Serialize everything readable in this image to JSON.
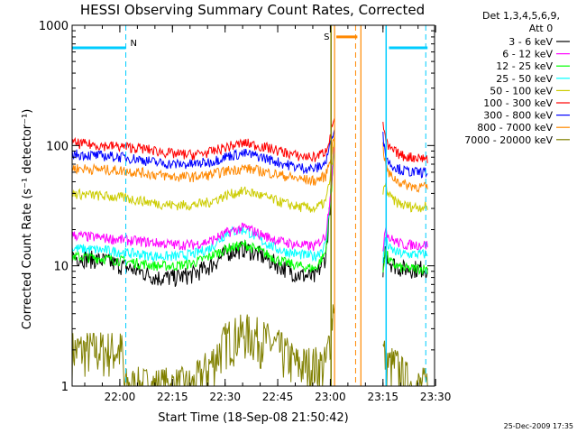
{
  "chart_data": {
    "type": "line",
    "title": "HESSI Observing Summary Count Rates, Corrected",
    "xlabel": "Start Time (18-Sep-08 21:50:42)",
    "ylabel": "Corrected Count Rate (s⁻¹ detector⁻¹)",
    "y_scale": "log",
    "ylim": [
      1,
      1000
    ],
    "xlim_minutes": [
      -4.3,
      99
    ],
    "x_ticks": [
      "22:00",
      "22:15",
      "22:30",
      "22:45",
      "23:00",
      "23:15",
      "23:30"
    ],
    "x_tick_minutes": [
      9.3,
      24.3,
      39.3,
      54.3,
      69.3,
      84.3,
      99.3
    ],
    "y_ticks": [
      "1",
      "10",
      "100",
      "1000"
    ],
    "y_tick_values": [
      1,
      10,
      100,
      1000
    ],
    "legend": {
      "header": [
        "Det 1,3,4,5,6,9,",
        "Att 0"
      ],
      "placement": "right"
    },
    "series": [
      {
        "name": "3 - 6 keV",
        "color": "#000000",
        "x": [
          -4.3,
          5,
          10,
          15,
          20,
          25,
          30,
          35,
          40,
          45,
          50,
          55,
          60,
          65,
          68,
          69.5,
          70.5
        ],
        "values": [
          12,
          11,
          10,
          9,
          8,
          8,
          8.5,
          10,
          13,
          14,
          12,
          10,
          8.5,
          8,
          12,
          40,
          100
        ]
      },
      {
        "name": "6 - 12 keV",
        "color": "#ff00ff",
        "x": [
          -4.3,
          5,
          10,
          15,
          20,
          25,
          30,
          35,
          40,
          45,
          50,
          55,
          60,
          65,
          68,
          69.5,
          70.5
        ],
        "values": [
          18,
          17,
          16.5,
          16,
          15.5,
          15,
          15,
          16,
          19,
          21,
          18,
          16,
          15,
          14.5,
          18,
          45,
          110
        ]
      },
      {
        "name": "12 - 25 keV",
        "color": "#00ff00",
        "x": [
          -4.3,
          5,
          10,
          15,
          20,
          25,
          30,
          35,
          40,
          45,
          50,
          55,
          60,
          65,
          68,
          69.5,
          70.5
        ],
        "values": [
          12,
          11.5,
          11,
          10.5,
          10,
          10,
          10.5,
          12,
          14,
          15,
          13,
          11,
          10,
          9.5,
          13,
          40,
          105
        ]
      },
      {
        "name": "25 - 50 keV",
        "color": "#00ffff",
        "x": [
          -4.3,
          5,
          10,
          15,
          20,
          25,
          30,
          35,
          40,
          45,
          50,
          55,
          60,
          65,
          68,
          69.5,
          70.5
        ],
        "values": [
          14,
          13.5,
          13,
          12.5,
          12,
          12,
          12.5,
          14,
          19,
          20,
          16,
          13.5,
          12.5,
          12,
          15,
          45,
          110
        ]
      },
      {
        "name": "50 - 100 keV",
        "color": "#cccc00",
        "x": [
          -4.3,
          5,
          10,
          15,
          20,
          25,
          30,
          35,
          40,
          45,
          50,
          55,
          60,
          65,
          68,
          69.5,
          70.5
        ],
        "values": [
          40,
          38,
          37,
          35,
          33,
          32,
          32,
          34,
          39,
          42,
          38,
          34,
          31,
          30,
          34,
          60,
          120
        ]
      },
      {
        "name": "100 - 300 keV",
        "color": "#ff0000",
        "x": [
          -4.3,
          5,
          10,
          15,
          20,
          25,
          30,
          35,
          40,
          45,
          50,
          55,
          60,
          65,
          68,
          69.5,
          70.5
        ],
        "values": [
          105,
          100,
          98,
          95,
          90,
          85,
          84,
          88,
          98,
          105,
          98,
          90,
          82,
          80,
          90,
          130,
          180
        ]
      },
      {
        "name": "300 - 800 keV",
        "color": "#0000ff",
        "x": [
          -4.3,
          5,
          10,
          15,
          20,
          25,
          30,
          35,
          40,
          45,
          50,
          55,
          60,
          65,
          68,
          69.5,
          70.5
        ],
        "values": [
          85,
          82,
          80,
          77,
          72,
          70,
          70,
          73,
          82,
          86,
          80,
          72,
          66,
          64,
          72,
          110,
          150
        ]
      },
      {
        "name": "800 - 7000 keV",
        "color": "#ff8800",
        "x": [
          -4.3,
          5,
          10,
          15,
          20,
          25,
          30,
          35,
          40,
          45,
          50,
          55,
          60,
          65,
          68,
          69.5,
          70.5
        ],
        "values": [
          65,
          63,
          62,
          60,
          57,
          55,
          55,
          57,
          62,
          65,
          61,
          57,
          53,
          51,
          56,
          85,
          130
        ]
      },
      {
        "name": "7000 - 20000 keV",
        "color": "#808000",
        "x": [
          -4.3,
          0,
          5,
          10,
          10.5,
          15,
          20,
          25,
          28,
          30,
          35,
          40,
          45,
          50,
          55,
          60,
          65,
          68,
          69.5,
          70.5
        ],
        "values": [
          2,
          2,
          2,
          2,
          1,
          1,
          1,
          1,
          1,
          1,
          1.5,
          2.5,
          2.8,
          2.5,
          2,
          1.5,
          1.5,
          1.5,
          3,
          6
        ]
      }
    ],
    "series_after_gap": [
      {
        "name": "3 - 6 keV",
        "x": [
          84.3,
          85,
          86,
          88,
          90,
          93,
          96,
          97
        ],
        "values": [
          9.5,
          14,
          11,
          10,
          9.5,
          9.5,
          9.5,
          9.5
        ]
      },
      {
        "name": "6 - 12 keV",
        "x": [
          84.3,
          85,
          86,
          88,
          90,
          93,
          96,
          97
        ],
        "values": [
          14,
          22,
          17,
          16,
          15,
          15,
          15,
          15
        ]
      },
      {
        "name": "12 - 25 keV",
        "x": [
          84.3,
          85,
          86,
          88,
          90,
          93,
          96,
          97
        ],
        "values": [
          9,
          14,
          11,
          10,
          9.5,
          9.5,
          9.5,
          9.5
        ]
      },
      {
        "name": "25 - 50 keV",
        "x": [
          84.3,
          85,
          86,
          88,
          90,
          93,
          96,
          97
        ],
        "values": [
          11,
          18,
          14,
          13,
          12.5,
          12.5,
          12.5,
          12.5
        ]
      },
      {
        "name": "50 - 100 keV",
        "x": [
          84.3,
          85,
          86,
          88,
          90,
          93,
          96,
          97
        ],
        "values": [
          40,
          48,
          38,
          34,
          32,
          31,
          31,
          31
        ]
      },
      {
        "name": "100 - 300 keV",
        "x": [
          84.3,
          85,
          86,
          88,
          90,
          93,
          96,
          97
        ],
        "values": [
          150,
          110,
          95,
          88,
          82,
          80,
          79,
          78
        ]
      },
      {
        "name": "300 - 800 keV",
        "x": [
          84.3,
          85,
          86,
          88,
          90,
          93,
          96,
          97
        ],
        "values": [
          120,
          85,
          72,
          66,
          62,
          60,
          60,
          60
        ]
      },
      {
        "name": "800 - 7000 keV",
        "x": [
          84.3,
          85,
          86,
          88,
          90,
          93,
          96,
          97
        ],
        "values": [
          100,
          70,
          58,
          52,
          48,
          46,
          45,
          45
        ]
      },
      {
        "name": "7000 - 20000 keV",
        "x": [
          84.3,
          86,
          88,
          90,
          93,
          96,
          97
        ],
        "values": [
          2,
          1.5,
          1.5,
          1.2,
          1,
          1,
          1
        ]
      }
    ],
    "annotations": {
      "N": {
        "label": "N",
        "color": "#00ccff",
        "bars": [
          [
            -4.3,
            11
          ],
          [
            86,
            97
          ]
        ],
        "level": 650,
        "dashed_lines": [
          11,
          96.5
        ],
        "solid_line": 85.2
      },
      "S": {
        "label": "S",
        "color": "#ff8800",
        "bars": [
          [
            71,
            77
          ]
        ],
        "level": 800,
        "solid_lines": [
          70.5,
          78
        ],
        "dashed_line": 76.5
      },
      "gap_start_line": 69.5
    },
    "footer_timestamp": "25-Dec-2009 17:35"
  }
}
